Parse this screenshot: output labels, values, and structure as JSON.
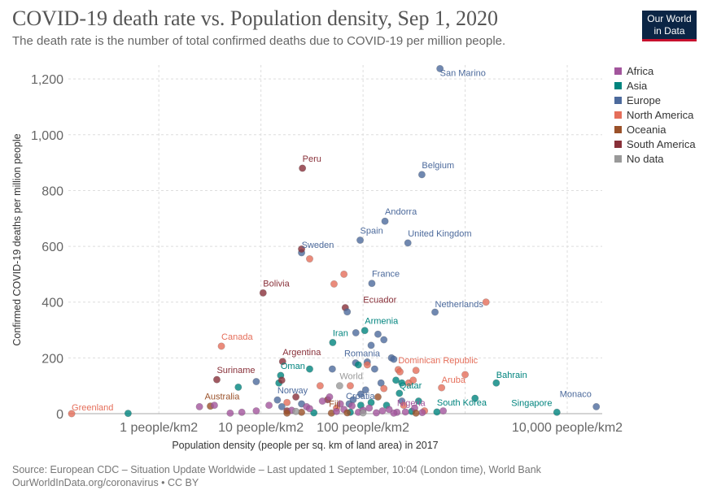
{
  "header": {
    "title": "COVID-19 death rate vs. Population density, Sep 1, 2020",
    "subtitle": "The death rate is the number of total confirmed deaths due to COVID-19 per million people."
  },
  "logo": {
    "line1": "Our World",
    "line2": "in Data",
    "bg": "#0b2545",
    "accent": "#c8102e"
  },
  "footer": {
    "source": "Source: European CDC – Situation Update Worldwide – Last updated 1 September, 10:04 (London time), World Bank",
    "credit": "OurWorldInData.org/coronavirus • CC BY"
  },
  "chart_data": {
    "type": "scatter",
    "title": "COVID-19 death rate vs. Population density, Sep 1, 2020",
    "xlabel": "Population density (people per sq. km of land area) in 2017",
    "ylabel": "Confirmed COVID-19 deaths per million people",
    "xscale": "log",
    "xlim": [
      0.13,
      22000
    ],
    "ylim": [
      0,
      1250
    ],
    "x_ticks": [
      {
        "value": 1,
        "label": "1 people/km2"
      },
      {
        "value": 10,
        "label": "10 people/km2"
      },
      {
        "value": 100,
        "label": "100 people/km2"
      },
      {
        "value": 10000,
        "label": "10,000 people/km2"
      }
    ],
    "x_gridlines": [
      1,
      10,
      100,
      1000,
      10000
    ],
    "y_ticks": [
      0,
      200,
      400,
      600,
      800,
      1000,
      1200
    ],
    "y_tick_labels": [
      "0",
      "200",
      "400",
      "600",
      "800",
      "1,000",
      "1,200"
    ],
    "legend_position": "right",
    "groups": [
      {
        "name": "Africa",
        "color": "#a2559c"
      },
      {
        "name": "Asia",
        "color": "#00847e"
      },
      {
        "name": "Europe",
        "color": "#4c6a9c"
      },
      {
        "name": "North America",
        "color": "#e56e5a"
      },
      {
        "name": "Oceania",
        "color": "#9a5129"
      },
      {
        "name": "South America",
        "color": "#883039"
      },
      {
        "name": "No data",
        "color": "#999999"
      }
    ],
    "points": [
      {
        "name": "San Marino",
        "group": "Europe",
        "x": 567,
        "y": 1237,
        "label": true
      },
      {
        "name": "Belgium",
        "group": "Europe",
        "x": 377,
        "y": 857,
        "label": true
      },
      {
        "name": "Peru",
        "group": "South America",
        "x": 25.5,
        "y": 880,
        "label": true
      },
      {
        "name": "Andorra",
        "group": "Europe",
        "x": 164,
        "y": 690,
        "label": true
      },
      {
        "name": "Spain",
        "group": "Europe",
        "x": 93.7,
        "y": 622,
        "label": true
      },
      {
        "name": "United Kingdom",
        "group": "Europe",
        "x": 275,
        "y": 612,
        "label": true
      },
      {
        "name": "Sweden",
        "group": "Europe",
        "x": 25,
        "y": 577,
        "label": true
      },
      {
        "name": "France",
        "group": "Europe",
        "x": 122,
        "y": 467,
        "label": true
      },
      {
        "name": "Bolivia",
        "group": "South America",
        "x": 10.5,
        "y": 433,
        "label": true
      },
      {
        "name": "Ecuador",
        "group": "South America",
        "x": 67,
        "y": 380,
        "label": true
      },
      {
        "name": "Netherlands",
        "group": "Europe",
        "x": 507,
        "y": 364,
        "label": true
      },
      {
        "name": "Armenia",
        "group": "Asia",
        "x": 104,
        "y": 298,
        "label": true
      },
      {
        "name": "Iran",
        "group": "Asia",
        "x": 50.5,
        "y": 255,
        "label": true
      },
      {
        "name": "Canada",
        "group": "North America",
        "x": 4.1,
        "y": 242,
        "label": true
      },
      {
        "name": "Argentina",
        "group": "South America",
        "x": 16.3,
        "y": 187,
        "label": true
      },
      {
        "name": "Romania",
        "group": "Europe",
        "x": 84.6,
        "y": 182,
        "label": true
      },
      {
        "name": "Dominican Republic",
        "group": "North America",
        "x": 221,
        "y": 158,
        "label": true
      },
      {
        "name": "Oman",
        "group": "Asia",
        "x": 15.6,
        "y": 137,
        "label": true
      },
      {
        "name": "Suriname",
        "group": "South America",
        "x": 3.7,
        "y": 122,
        "label": true
      },
      {
        "name": "Bahrain",
        "group": "Asia",
        "x": 2017,
        "y": 110,
        "label": true
      },
      {
        "name": "World",
        "group": "No data",
        "x": 59,
        "y": 100,
        "label": true
      },
      {
        "name": "Aruba",
        "group": "North America",
        "x": 588,
        "y": 93,
        "label": true
      },
      {
        "name": "Qatar",
        "group": "Asia",
        "x": 227,
        "y": 73,
        "label": true
      },
      {
        "name": "Norway",
        "group": "Europe",
        "x": 14.5,
        "y": 49,
        "label": true
      },
      {
        "name": "Croatia",
        "group": "Europe",
        "x": 73.1,
        "y": 35,
        "label": true
      },
      {
        "name": "Australia",
        "group": "Oceania",
        "x": 3.2,
        "y": 27,
        "label": true
      },
      {
        "name": "Nigeria",
        "group": "Africa",
        "x": 215,
        "y": 5,
        "label": true
      },
      {
        "name": "South Korea",
        "group": "Asia",
        "x": 529,
        "y": 6,
        "label": true
      },
      {
        "name": "Fiji",
        "group": "Oceania",
        "x": 49,
        "y": 2,
        "label": true
      },
      {
        "name": "Singapore",
        "group": "Asia",
        "x": 7916,
        "y": 5,
        "label": true
      },
      {
        "name": "Monaco",
        "group": "Europe",
        "x": 19250,
        "y": 25,
        "label": true
      },
      {
        "name": "Greenland",
        "group": "North America",
        "x": 0.14,
        "y": 0,
        "label": true
      },
      {
        "name": "",
        "group": "North America",
        "x": 30,
        "y": 555
      },
      {
        "name": "",
        "group": "North America",
        "x": 65,
        "y": 500
      },
      {
        "name": "",
        "group": "North America",
        "x": 52,
        "y": 465
      },
      {
        "name": "",
        "group": "North America",
        "x": 1600,
        "y": 400
      },
      {
        "name": "",
        "group": "South America",
        "x": 25,
        "y": 590
      },
      {
        "name": "",
        "group": "Europe",
        "x": 70,
        "y": 365
      },
      {
        "name": "",
        "group": "Europe",
        "x": 85,
        "y": 290
      },
      {
        "name": "",
        "group": "Europe",
        "x": 140,
        "y": 285
      },
      {
        "name": "",
        "group": "Europe",
        "x": 160,
        "y": 265
      },
      {
        "name": "",
        "group": "Europe",
        "x": 120,
        "y": 245
      },
      {
        "name": "",
        "group": "Europe",
        "x": 190,
        "y": 200
      },
      {
        "name": "",
        "group": "Europe",
        "x": 110,
        "y": 185
      },
      {
        "name": "",
        "group": "Europe",
        "x": 9,
        "y": 115
      },
      {
        "name": "",
        "group": "Europe",
        "x": 50,
        "y": 160
      },
      {
        "name": "",
        "group": "Europe",
        "x": 130,
        "y": 160
      },
      {
        "name": "",
        "group": "Europe",
        "x": 200,
        "y": 195
      },
      {
        "name": "",
        "group": "Europe",
        "x": 150,
        "y": 110
      },
      {
        "name": "",
        "group": "Europe",
        "x": 106,
        "y": 85
      },
      {
        "name": "",
        "group": "Europe",
        "x": 25,
        "y": 35
      },
      {
        "name": "",
        "group": "Europe",
        "x": 16,
        "y": 25
      },
      {
        "name": "",
        "group": "Europe",
        "x": 80,
        "y": 50
      },
      {
        "name": "",
        "group": "Europe",
        "x": 240,
        "y": 45
      },
      {
        "name": "",
        "group": "Europe",
        "x": 95,
        "y": 70
      },
      {
        "name": "",
        "group": "Asia",
        "x": 6,
        "y": 95
      },
      {
        "name": "",
        "group": "Asia",
        "x": 15,
        "y": 110
      },
      {
        "name": "",
        "group": "Asia",
        "x": 30,
        "y": 160
      },
      {
        "name": "",
        "group": "Asia",
        "x": 90,
        "y": 175
      },
      {
        "name": "",
        "group": "Asia",
        "x": 210,
        "y": 120
      },
      {
        "name": "",
        "group": "Asia",
        "x": 240,
        "y": 110
      },
      {
        "name": "",
        "group": "Asia",
        "x": 120,
        "y": 40
      },
      {
        "name": "",
        "group": "Asia",
        "x": 95,
        "y": 30
      },
      {
        "name": "",
        "group": "Asia",
        "x": 170,
        "y": 30
      },
      {
        "name": "",
        "group": "Asia",
        "x": 350,
        "y": 45
      },
      {
        "name": "",
        "group": "Asia",
        "x": 1250,
        "y": 55
      },
      {
        "name": "",
        "group": "Asia",
        "x": 0.5,
        "y": 1
      },
      {
        "name": "",
        "group": "Asia",
        "x": 75,
        "y": 5
      },
      {
        "name": "",
        "group": "Asia",
        "x": 300,
        "y": 8
      },
      {
        "name": "",
        "group": "Asia",
        "x": 33,
        "y": 3
      },
      {
        "name": "",
        "group": "North America",
        "x": 75,
        "y": 100
      },
      {
        "name": "",
        "group": "North America",
        "x": 110,
        "y": 175
      },
      {
        "name": "",
        "group": "North America",
        "x": 230,
        "y": 150
      },
      {
        "name": "",
        "group": "North America",
        "x": 280,
        "y": 110
      },
      {
        "name": "",
        "group": "North America",
        "x": 330,
        "y": 155
      },
      {
        "name": "",
        "group": "North America",
        "x": 1000,
        "y": 140
      },
      {
        "name": "",
        "group": "North America",
        "x": 310,
        "y": 120
      },
      {
        "name": "",
        "group": "North America",
        "x": 38,
        "y": 100
      },
      {
        "name": "",
        "group": "North America",
        "x": 160,
        "y": 90
      },
      {
        "name": "",
        "group": "North America",
        "x": 250,
        "y": 30
      },
      {
        "name": "",
        "group": "North America",
        "x": 400,
        "y": 10
      },
      {
        "name": "",
        "group": "North America",
        "x": 18,
        "y": 40
      },
      {
        "name": "",
        "group": "North America",
        "x": 55,
        "y": 20
      },
      {
        "name": "",
        "group": "South America",
        "x": 16,
        "y": 120
      },
      {
        "name": "",
        "group": "South America",
        "x": 22,
        "y": 60
      },
      {
        "name": "",
        "group": "South America",
        "x": 45,
        "y": 50
      },
      {
        "name": "",
        "group": "South America",
        "x": 18,
        "y": 10
      },
      {
        "name": "",
        "group": "Africa",
        "x": 2.5,
        "y": 25
      },
      {
        "name": "",
        "group": "Africa",
        "x": 3.5,
        "y": 30
      },
      {
        "name": "",
        "group": "Africa",
        "x": 6.5,
        "y": 5
      },
      {
        "name": "",
        "group": "Africa",
        "x": 9,
        "y": 10
      },
      {
        "name": "",
        "group": "Africa",
        "x": 12,
        "y": 30
      },
      {
        "name": "",
        "group": "Africa",
        "x": 20,
        "y": 12
      },
      {
        "name": "",
        "group": "Africa",
        "x": 28,
        "y": 25
      },
      {
        "name": "",
        "group": "Africa",
        "x": 40,
        "y": 45
      },
      {
        "name": "",
        "group": "Africa",
        "x": 47,
        "y": 60
      },
      {
        "name": "",
        "group": "Africa",
        "x": 55,
        "y": 8
      },
      {
        "name": "",
        "group": "Africa",
        "x": 65,
        "y": 15
      },
      {
        "name": "",
        "group": "Africa",
        "x": 78,
        "y": 28
      },
      {
        "name": "",
        "group": "Africa",
        "x": 90,
        "y": 5
      },
      {
        "name": "",
        "group": "Africa",
        "x": 100,
        "y": 12
      },
      {
        "name": "",
        "group": "Africa",
        "x": 115,
        "y": 20
      },
      {
        "name": "",
        "group": "Africa",
        "x": 135,
        "y": 3
      },
      {
        "name": "",
        "group": "Africa",
        "x": 155,
        "y": 10
      },
      {
        "name": "",
        "group": "Africa",
        "x": 180,
        "y": 15
      },
      {
        "name": "",
        "group": "Africa",
        "x": 200,
        "y": 2
      },
      {
        "name": "",
        "group": "Africa",
        "x": 260,
        "y": 6
      },
      {
        "name": "",
        "group": "Africa",
        "x": 320,
        "y": 20
      },
      {
        "name": "",
        "group": "Africa",
        "x": 380,
        "y": 4
      },
      {
        "name": "",
        "group": "Africa",
        "x": 610,
        "y": 10
      },
      {
        "name": "",
        "group": "Africa",
        "x": 5,
        "y": 2
      },
      {
        "name": "",
        "group": "Africa",
        "x": 30,
        "y": 18
      },
      {
        "name": "",
        "group": "Africa",
        "x": 60,
        "y": 35
      },
      {
        "name": "",
        "group": "Oceania",
        "x": 18,
        "y": 2
      },
      {
        "name": "",
        "group": "Oceania",
        "x": 25,
        "y": 5
      },
      {
        "name": "",
        "group": "Oceania",
        "x": 140,
        "y": 60
      },
      {
        "name": "",
        "group": "Oceania",
        "x": 70,
        "y": 3
      },
      {
        "name": "",
        "group": "Oceania",
        "x": 330,
        "y": 2
      },
      {
        "name": "",
        "group": "No data",
        "x": 22,
        "y": 8
      },
      {
        "name": "",
        "group": "No data",
        "x": 100,
        "y": 3
      }
    ]
  }
}
